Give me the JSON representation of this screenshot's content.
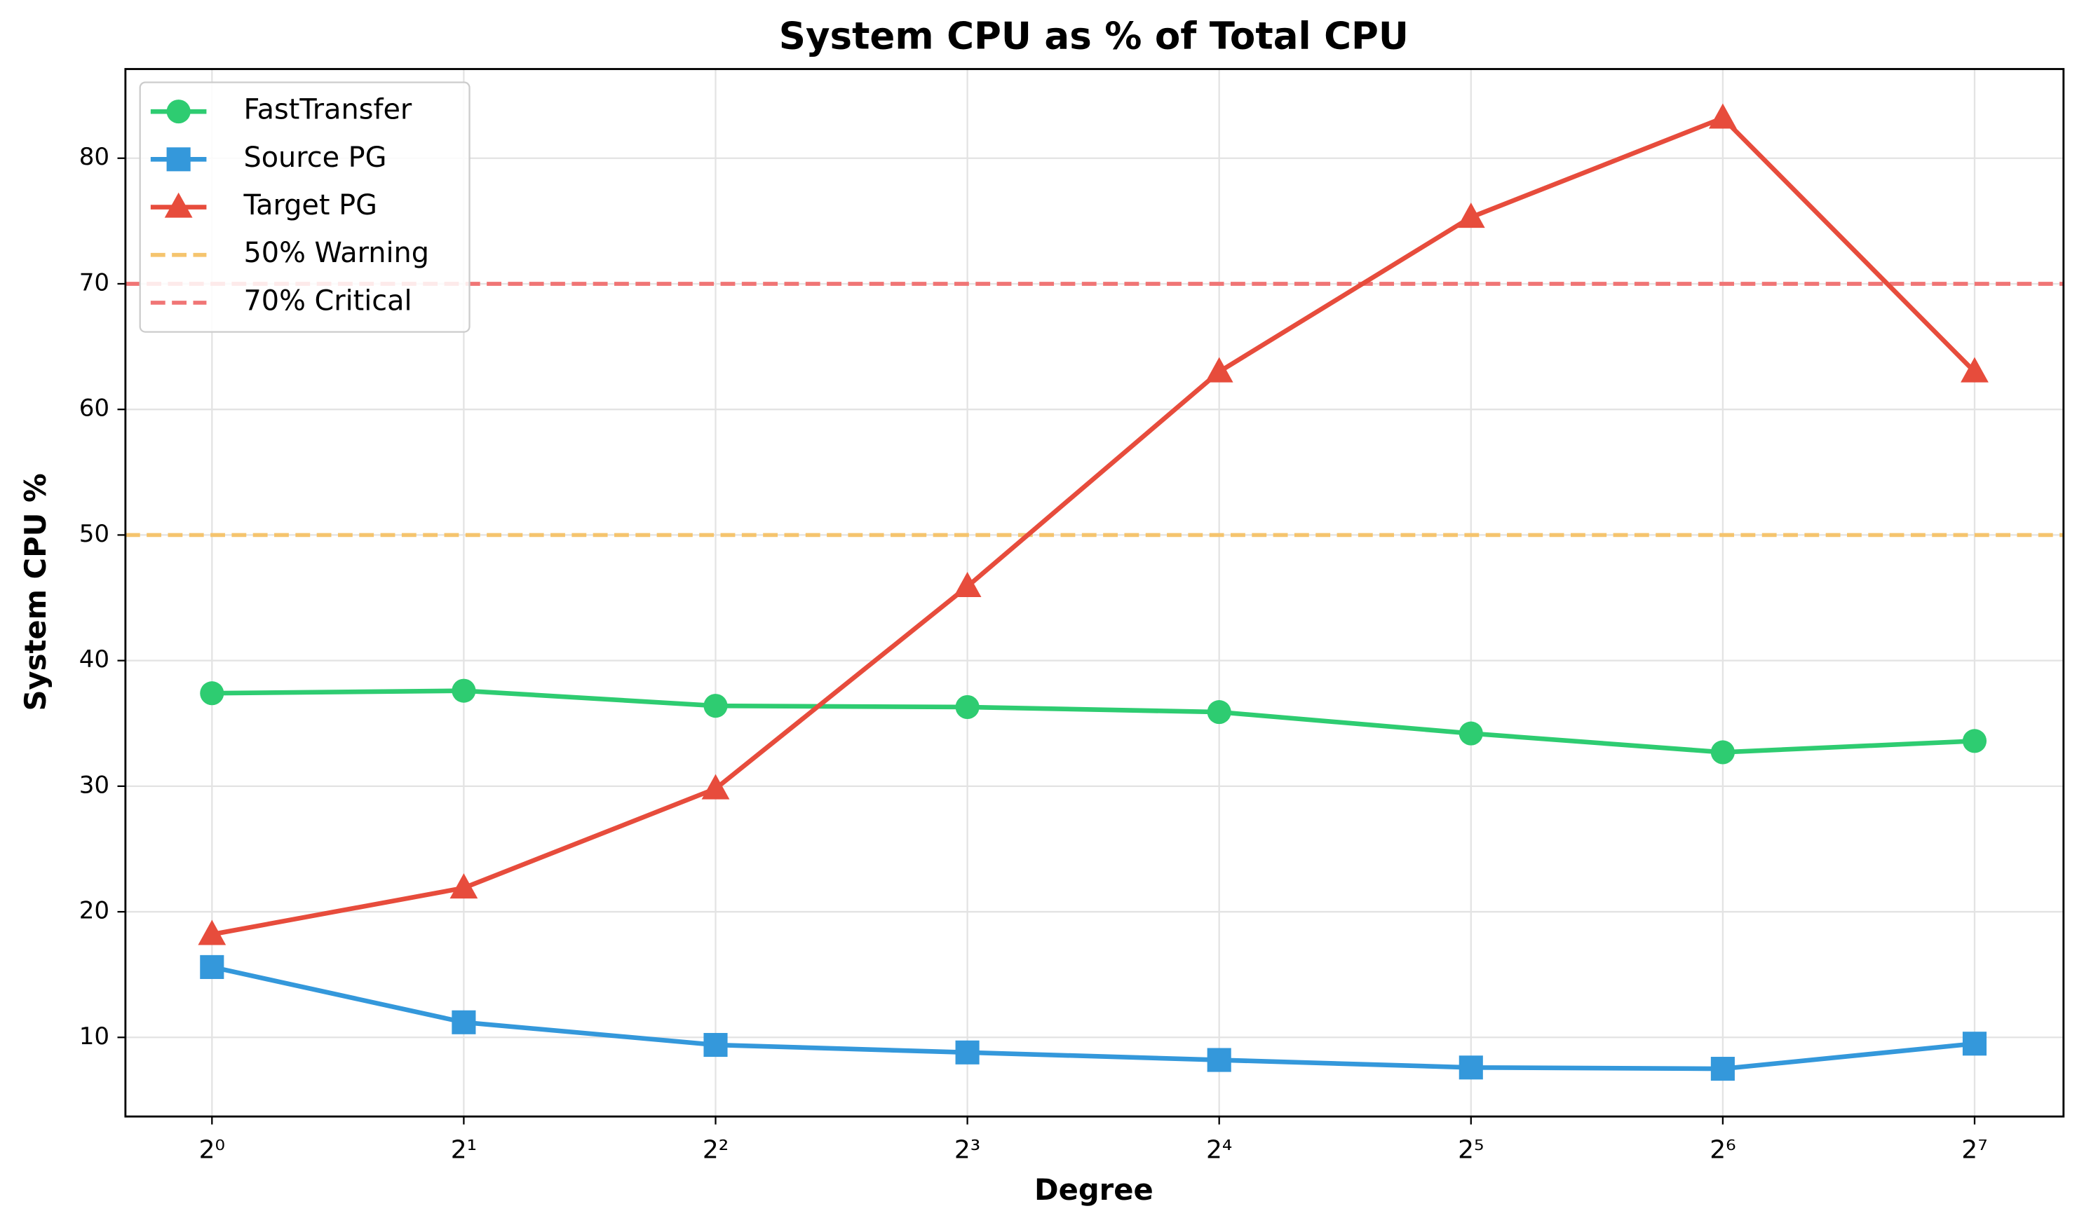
{
  "chart_data": {
    "type": "line",
    "title": "System CPU as % of Total CPU",
    "xlabel": "Degree",
    "ylabel": "System CPU %",
    "x": [
      1,
      2,
      4,
      8,
      16,
      32,
      64,
      128
    ],
    "xscale": "log2",
    "xlim": [
      0.788,
      163.5
    ],
    "xticks": [
      {
        "value": 1,
        "label": "2⁰"
      },
      {
        "value": 2,
        "label": "2¹"
      },
      {
        "value": 4,
        "label": "2²"
      },
      {
        "value": 8,
        "label": "2³"
      },
      {
        "value": 16,
        "label": "2⁴"
      },
      {
        "value": 32,
        "label": "2⁵"
      },
      {
        "value": 64,
        "label": "2⁶"
      },
      {
        "value": 128,
        "label": "2⁷"
      }
    ],
    "ylim": [
      3.7,
      87.1
    ],
    "yticks": [
      10,
      20,
      30,
      40,
      50,
      60,
      70,
      80
    ],
    "grid": true,
    "legend": "upper left",
    "series": [
      {
        "name": "FastTransfer",
        "color": "#2ecc71",
        "marker": "circle",
        "values": [
          37.4,
          37.6,
          36.4,
          36.3,
          35.9,
          34.2,
          32.7,
          33.6
        ]
      },
      {
        "name": "Source PG",
        "color": "#3498db",
        "marker": "square",
        "values": [
          15.6,
          11.2,
          9.4,
          8.8,
          8.2,
          7.6,
          7.5,
          9.5
        ]
      },
      {
        "name": "Target PG",
        "color": "#e74c3c",
        "marker": "triangle",
        "values": [
          18.2,
          21.9,
          29.8,
          45.9,
          63.0,
          75.3,
          83.2,
          63.0
        ]
      }
    ],
    "hlines": [
      {
        "name": "50% Warning",
        "value": 50,
        "color": "#f5c46e"
      },
      {
        "name": "70% Critical",
        "value": 70,
        "color": "#f07575"
      }
    ]
  }
}
